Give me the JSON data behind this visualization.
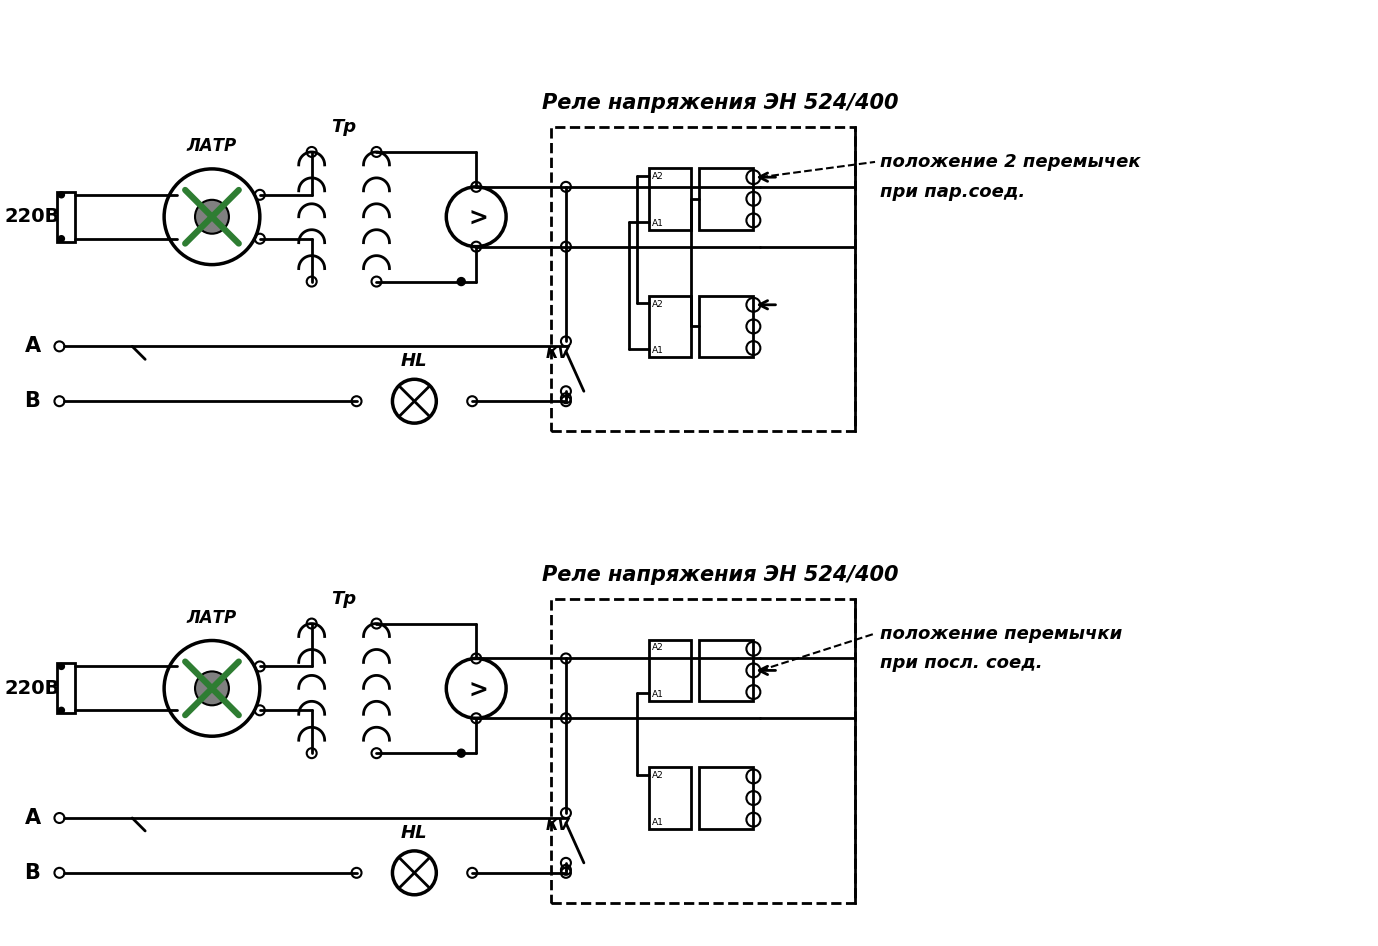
{
  "bg_color": "#ffffff",
  "lc": "#000000",
  "gc": "#2e7d32",
  "gray": "#808080",
  "title": "Реле напряжения ЭН 524/400",
  "label_LATR": "ЛАТР",
  "label_Tr": "Тр",
  "label_220V": "220В",
  "label_A": "А",
  "label_B": "В",
  "label_HL": "HL",
  "label_KV": "КV",
  "ann1_l1": "положение 2 перемычек",
  "ann1_l2": "при пар.соед.",
  "ann2_l1": "положение перемычки",
  "ann2_l2": "при посл. соед.",
  "figsize": [
    13.78,
    9.46
  ],
  "dpi": 100
}
